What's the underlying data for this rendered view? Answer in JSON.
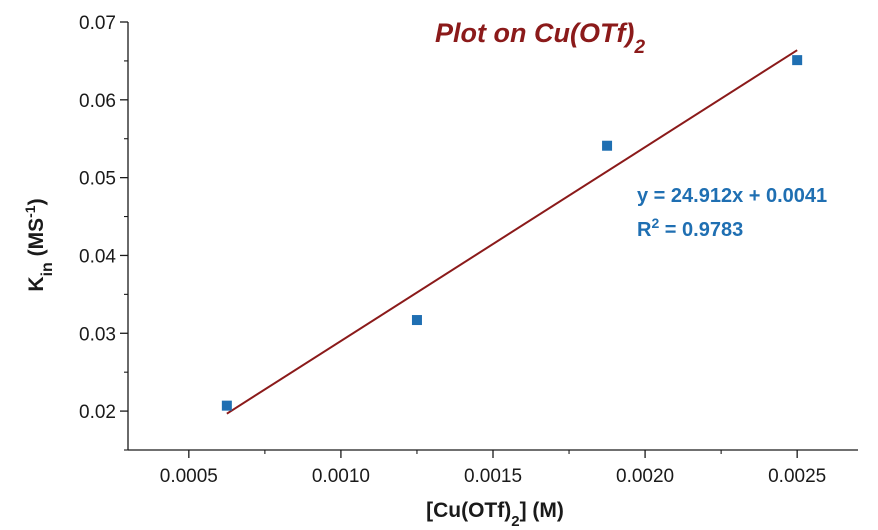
{
  "chart_data": {
    "type": "scatter",
    "title_main": "Plot on Cu(OTf)",
    "title_sub": "2",
    "xlabel_pre": "[Cu(OTf)",
    "xlabel_sub": "2",
    "xlabel_post": "] (M)",
    "ylabel_main": "K",
    "ylabel_sub": "in",
    "ylabel_unit_pre": " (MS",
    "ylabel_unit_sup": "-1",
    "ylabel_unit_post": ")",
    "xlim": [
      0.0003,
      0.0027
    ],
    "ylim": [
      0.015,
      0.07
    ],
    "xticks": [
      0.0005,
      0.001,
      0.0015,
      0.002,
      0.0025
    ],
    "xtick_labels": [
      "0.0005",
      "0.0010",
      "0.0015",
      "0.0020",
      "0.0025"
    ],
    "yticks": [
      0.02,
      0.03,
      0.04,
      0.05,
      0.06,
      0.07
    ],
    "ytick_labels": [
      "0.02",
      "0.03",
      "0.04",
      "0.05",
      "0.06",
      "0.07"
    ],
    "series": [
      {
        "x": [
          0.000625,
          0.00125,
          0.001875,
          0.0025
        ],
        "y": [
          0.0207,
          0.0317,
          0.0541,
          0.0651
        ]
      }
    ],
    "fit": {
      "slope": 24.912,
      "intercept": 0.0041,
      "x_range": [
        0.000625,
        0.0025
      ]
    },
    "equation_text": "y = 24.912x + 0.0041",
    "r2_pre": "R",
    "r2_sup": "2",
    "r2_post": " = 0.9783",
    "grid": false,
    "colors": {
      "marker": "#1f6fb2",
      "fit_line": "#8b1a1a",
      "title": "#8b1a1a",
      "annotation": "#1f6fb2",
      "axis": "#1a1a1a"
    }
  }
}
